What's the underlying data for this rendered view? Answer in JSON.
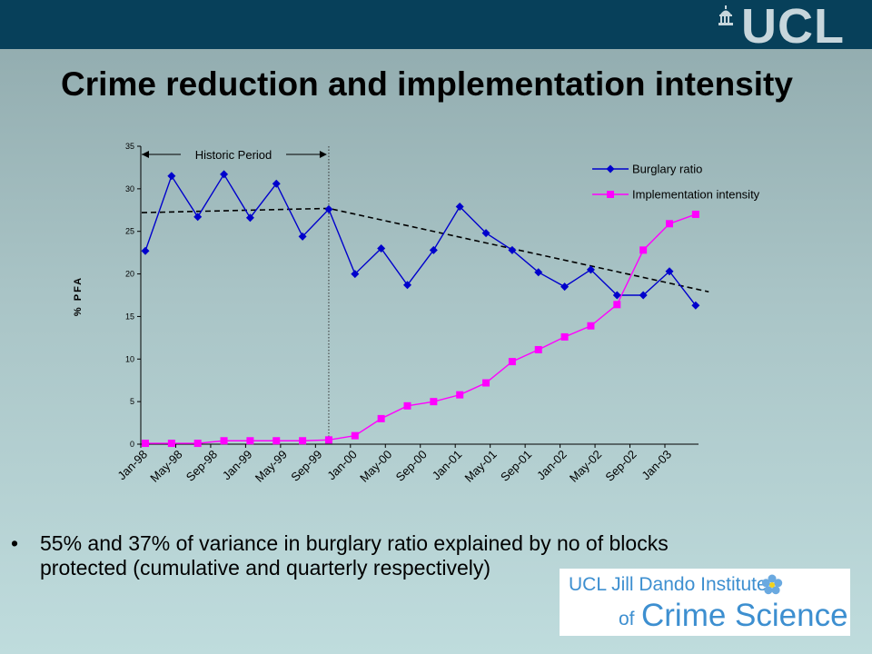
{
  "header": {
    "logo_text": "UCL",
    "title": "Crime reduction and implementation intensity"
  },
  "chart_data": {
    "type": "line",
    "title": "",
    "ylabel": "% PFA",
    "xlabel": "",
    "ylim": [
      0,
      35
    ],
    "yticks": [
      0,
      5,
      10,
      15,
      20,
      25,
      30,
      35
    ],
    "xticks": [
      "Jan-98",
      "May-98",
      "Sep-98",
      "Jan-99",
      "May-99",
      "Sep-99",
      "Jan-00",
      "May-00",
      "Sep-00",
      "Jan-01",
      "May-01",
      "Sep-01",
      "Jan-02",
      "May-02",
      "Sep-02",
      "Jan-03"
    ],
    "x": [
      "Jan-98",
      "Apr-98",
      "Jul-98",
      "Oct-98",
      "Jan-99",
      "Apr-99",
      "Jul-99",
      "Oct-99",
      "Jan-00",
      "Apr-00",
      "Jul-00",
      "Oct-00",
      "Jan-01",
      "Apr-01",
      "Jul-01",
      "Oct-01",
      "Jan-02",
      "Apr-02",
      "Jul-02",
      "Oct-02",
      "Jan-03",
      "Apr-03"
    ],
    "series": [
      {
        "name": "Burglary ratio",
        "color": "#0000cc",
        "marker": "diamond",
        "values": [
          22.7,
          31.5,
          26.7,
          31.7,
          26.6,
          30.6,
          24.4,
          27.6,
          20.0,
          23.0,
          18.7,
          22.8,
          27.9,
          24.8,
          22.8,
          20.2,
          18.5,
          20.5,
          17.5,
          17.5,
          20.3,
          16.3
        ]
      },
      {
        "name": "Implementation intensity",
        "color": "#ff00ff",
        "marker": "square",
        "values": [
          0.1,
          0.1,
          0.1,
          0.4,
          0.4,
          0.4,
          0.4,
          0.5,
          1.0,
          3.0,
          4.5,
          5.0,
          5.8,
          7.2,
          9.7,
          11.1,
          12.6,
          13.9,
          16.4,
          22.8,
          25.9,
          27.0
        ]
      }
    ],
    "trend": {
      "start": [
        0,
        27.2
      ],
      "peak": [
        7,
        27.7
      ],
      "end": [
        21.5,
        17.9
      ],
      "style": "dashed"
    },
    "annotation": {
      "text": "Historic Period",
      "from_index": 0,
      "to_index": 7
    },
    "legend": "top-right",
    "grid": false
  },
  "bullet": {
    "text": "55% and 37% of variance in burglary ratio explained by no of blocks\nprotected (cumulative and quarterly respectively)"
  },
  "institute_logo": {
    "line1": "UCL Jill Dando Institute",
    "line2a": "of",
    "line2b": "Crime Science"
  }
}
